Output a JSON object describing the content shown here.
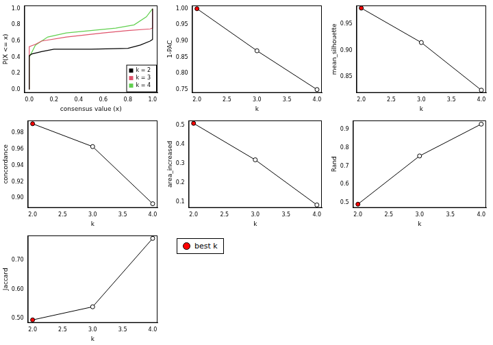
{
  "chart_data": [
    {
      "type": "line",
      "x_label": "consensus value (x)",
      "y_label": "P(X <= x)",
      "xlim": [
        -0.04,
        1.04
      ],
      "xticks": [
        {
          "value": 0,
          "label": "0.0"
        },
        0.2,
        0.4,
        0.6,
        0.8,
        {
          "value": 1,
          "label": "1.0"
        }
      ],
      "ylim": [
        -0.04,
        1.04
      ],
      "yticks": [
        {
          "value": 0,
          "label": "0.0"
        },
        0.2,
        0.4,
        0.6,
        0.8,
        {
          "value": 1,
          "label": "1.0"
        }
      ],
      "grid": false,
      "legend": "bottomright",
      "series": [
        {
          "name": "k = 2",
          "color": "#000000",
          "x": [
            0,
            0,
            0.02,
            0.1,
            0.2,
            0.5,
            0.8,
            0.9,
            0.98,
            1,
            1
          ],
          "values": [
            0,
            0.42,
            0.44,
            0.47,
            0.5,
            0.5,
            0.51,
            0.55,
            0.6,
            0.62,
            1
          ]
        },
        {
          "name": "k = 3",
          "color": "#DF536B",
          "x": [
            0,
            0,
            0.05,
            0.1,
            0.3,
            0.6,
            0.8,
            0.98,
            1,
            1
          ],
          "values": [
            0,
            0.53,
            0.56,
            0.6,
            0.65,
            0.7,
            0.73,
            0.75,
            0.76,
            1
          ]
        },
        {
          "name": "k = 4",
          "color": "#61D04F",
          "x": [
            0,
            0,
            0.05,
            0.15,
            0.3,
            0.5,
            0.7,
            0.85,
            0.95,
            1
          ],
          "values": [
            0,
            0.4,
            0.55,
            0.65,
            0.7,
            0.73,
            0.76,
            0.8,
            0.9,
            1
          ]
        }
      ]
    },
    {
      "type": "line",
      "x_label": "k",
      "y_label": "1-PAC",
      "xlim": [
        1.92,
        4.08
      ],
      "xticks": [
        {
          "value": 2,
          "label": "2.0"
        },
        2.5,
        {
          "value": 3,
          "label": "3.0"
        },
        3.5,
        {
          "value": 4,
          "label": "4.0"
        }
      ],
      "ylim": [
        0.74,
        1.01
      ],
      "yticks": [
        0.75,
        {
          "value": 0.8,
          "label": "0.80"
        },
        0.85,
        {
          "value": 0.9,
          "label": "0.90"
        },
        0.95,
        {
          "value": 1,
          "label": "1.00"
        }
      ],
      "grid": false,
      "marker": "circle",
      "color": "#000000",
      "x": [
        2,
        3,
        4
      ],
      "values": [
        1.0,
        0.87,
        0.75
      ],
      "colors": [
        "#FF0000",
        "#FFFFFF",
        "#FFFFFF"
      ]
    },
    {
      "type": "line",
      "x_label": "k",
      "y_label": "mean_silhouette",
      "xlim": [
        1.92,
        4.08
      ],
      "xticks": [
        {
          "value": 2,
          "label": "2.0"
        },
        2.5,
        {
          "value": 3,
          "label": "3.0"
        },
        3.5,
        {
          "value": 4,
          "label": "4.0"
        }
      ],
      "ylim": [
        0.82,
        0.985
      ],
      "yticks": [
        0.85,
        {
          "value": 0.9,
          "label": "0.90"
        },
        0.95
      ],
      "grid": false,
      "marker": "circle",
      "color": "#000000",
      "x": [
        2,
        3,
        4
      ],
      "values": [
        0.98,
        0.915,
        0.825
      ],
      "colors": [
        "#FF0000",
        "#FFFFFF",
        "#FFFFFF"
      ]
    },
    {
      "type": "line",
      "x_label": "k",
      "y_label": "concordance",
      "xlim": [
        1.92,
        4.08
      ],
      "xticks": [
        {
          "value": 2,
          "label": "2.0"
        },
        2.5,
        {
          "value": 3,
          "label": "3.0"
        },
        3.5,
        {
          "value": 4,
          "label": "4.0"
        }
      ],
      "ylim": [
        0.888,
        0.995
      ],
      "yticks": [
        {
          "value": 0.9,
          "label": "0.90"
        },
        0.92,
        0.94,
        0.96,
        0.98
      ],
      "grid": false,
      "marker": "circle",
      "color": "#000000",
      "x": [
        2,
        3,
        4
      ],
      "values": [
        0.991,
        0.963,
        0.893
      ],
      "colors": [
        "#FF0000",
        "#FFFFFF",
        "#FFFFFF"
      ]
    },
    {
      "type": "line",
      "x_label": "k",
      "y_label": "area_increased",
      "xlim": [
        1.92,
        4.08
      ],
      "xticks": [
        {
          "value": 2,
          "label": "2.0"
        },
        2.5,
        {
          "value": 3,
          "label": "3.0"
        },
        3.5,
        {
          "value": 4,
          "label": "4.0"
        }
      ],
      "ylim": [
        0.07,
        0.525
      ],
      "yticks": [
        0.1,
        0.2,
        0.3,
        0.4,
        0.5
      ],
      "grid": false,
      "marker": "circle",
      "color": "#000000",
      "x": [
        2,
        3,
        4
      ],
      "values": [
        0.51,
        0.32,
        0.085
      ],
      "colors": [
        "#FF0000",
        "#FFFFFF",
        "#FFFFFF"
      ]
    },
    {
      "type": "line",
      "x_label": "k",
      "y_label": "Rand",
      "xlim": [
        1.92,
        4.08
      ],
      "xticks": [
        {
          "value": 2,
          "label": "2.0"
        },
        2.5,
        {
          "value": 3,
          "label": "3.0"
        },
        3.5,
        {
          "value": 4,
          "label": "4.0"
        }
      ],
      "ylim": [
        0.47,
        0.95
      ],
      "yticks": [
        0.5,
        0.6,
        0.7,
        0.8,
        0.9
      ],
      "grid": false,
      "marker": "circle",
      "color": "#000000",
      "x": [
        2,
        3,
        4
      ],
      "values": [
        0.49,
        0.755,
        0.93
      ],
      "colors": [
        "#FF0000",
        "#FFFFFF",
        "#FFFFFF"
      ]
    },
    {
      "type": "line",
      "x_label": "k",
      "y_label": "Jaccard",
      "xlim": [
        1.92,
        4.08
      ],
      "xticks": [
        {
          "value": 2,
          "label": "2.0"
        },
        2.5,
        {
          "value": 3,
          "label": "3.0"
        },
        3.5,
        {
          "value": 4,
          "label": "4.0"
        }
      ],
      "ylim": [
        0.485,
        0.785
      ],
      "yticks": [
        {
          "value": 0.5,
          "label": "0.50"
        },
        {
          "value": 0.6,
          "label": "0.60"
        },
        {
          "value": 0.7,
          "label": "0.70"
        }
      ],
      "grid": false,
      "marker": "circle",
      "color": "#000000",
      "x": [
        2,
        3,
        4
      ],
      "values": [
        0.495,
        0.54,
        0.775
      ],
      "colors": [
        "#FF0000",
        "#FFFFFF",
        "#FFFFFF"
      ]
    }
  ],
  "legend_box": {
    "label": "best k",
    "color": "#FF0000"
  }
}
